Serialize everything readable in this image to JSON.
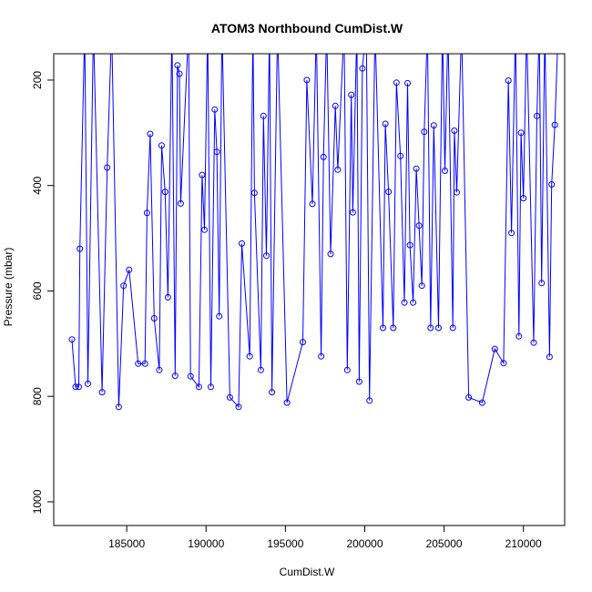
{
  "chart_data": {
    "type": "line",
    "title": "ATOM3 Northbound CumDist.W",
    "xlabel": "CumDist.W",
    "ylabel": "Pressure (mbar)",
    "xlim": [
      180400,
      212600
    ],
    "ylim": [
      1045,
      150
    ],
    "y_reversed": true,
    "x_ticks": [
      185000,
      190000,
      195000,
      200000,
      205000,
      210000
    ],
    "x_tick_labels": [
      "185000",
      "190000",
      "195000",
      "200000",
      "205000",
      "210000"
    ],
    "y_ticks": [
      200,
      400,
      600,
      800,
      1000
    ],
    "y_tick_labels": [
      "200",
      "400",
      "600",
      "800",
      "1000"
    ],
    "line_color": "#0000ff",
    "marker": "open-circle",
    "grid": false,
    "series": [
      {
        "points": [
          [
            181550,
            692
          ],
          [
            181780,
            782
          ],
          [
            181980,
            782
          ],
          [
            182050,
            520
          ],
          [
            182350,
            100
          ],
          [
            182550,
            776
          ],
          [
            182900,
            100
          ],
          [
            183450,
            792
          ],
          [
            183770,
            366
          ],
          [
            184050,
            100
          ],
          [
            184500,
            820
          ],
          [
            184800,
            590
          ],
          [
            185150,
            560
          ],
          [
            185720,
            738
          ],
          [
            186150,
            738
          ],
          [
            186280,
            452
          ],
          [
            186480,
            302
          ],
          [
            186730,
            652
          ],
          [
            187050,
            750
          ],
          [
            187200,
            324
          ],
          [
            187420,
            412
          ],
          [
            187600,
            612
          ],
          [
            187850,
            100
          ],
          [
            188050,
            761
          ],
          [
            188200,
            172
          ],
          [
            188320,
            188
          ],
          [
            188400,
            434
          ],
          [
            188900,
            100
          ],
          [
            189020,
            762
          ],
          [
            189550,
            782
          ],
          [
            189750,
            380
          ],
          [
            189900,
            484
          ],
          [
            190100,
            100
          ],
          [
            190300,
            782
          ],
          [
            190550,
            256
          ],
          [
            190680,
            336
          ],
          [
            190830,
            648
          ],
          [
            191000,
            100
          ],
          [
            191500,
            802
          ],
          [
            192050,
            820
          ],
          [
            192250,
            510
          ],
          [
            192750,
            724
          ],
          [
            192950,
            100
          ],
          [
            193050,
            414
          ],
          [
            193450,
            750
          ],
          [
            193620,
            268
          ],
          [
            193800,
            533
          ],
          [
            194000,
            100
          ],
          [
            194150,
            792
          ],
          [
            194500,
            100
          ],
          [
            195100,
            812
          ],
          [
            196100,
            697
          ],
          [
            196350,
            200
          ],
          [
            196700,
            435
          ],
          [
            196950,
            100
          ],
          [
            197250,
            724
          ],
          [
            197400,
            346
          ],
          [
            197600,
            100
          ],
          [
            197850,
            530
          ],
          [
            198150,
            249
          ],
          [
            198300,
            370
          ],
          [
            198700,
            100
          ],
          [
            198900,
            750
          ],
          [
            199150,
            228
          ],
          [
            199250,
            451
          ],
          [
            199500,
            100
          ],
          [
            199650,
            772
          ],
          [
            199850,
            178
          ],
          [
            200100,
            100
          ],
          [
            200300,
            808
          ],
          [
            200650,
            100
          ],
          [
            201150,
            670
          ],
          [
            201300,
            283
          ],
          [
            201500,
            412
          ],
          [
            201800,
            670
          ],
          [
            202000,
            205
          ],
          [
            202250,
            344
          ],
          [
            202500,
            622
          ],
          [
            202700,
            206
          ],
          [
            202850,
            513
          ],
          [
            203050,
            622
          ],
          [
            203250,
            368
          ],
          [
            203420,
            476
          ],
          [
            203600,
            590
          ],
          [
            203750,
            298
          ],
          [
            203950,
            100
          ],
          [
            204150,
            670
          ],
          [
            204350,
            286
          ],
          [
            204650,
            670
          ],
          [
            204900,
            100
          ],
          [
            205050,
            372
          ],
          [
            205250,
            100
          ],
          [
            205550,
            670
          ],
          [
            205650,
            296
          ],
          [
            205800,
            413
          ],
          [
            206100,
            100
          ],
          [
            206550,
            802
          ],
          [
            207400,
            812
          ],
          [
            208200,
            710
          ],
          [
            208750,
            737
          ],
          [
            209050,
            201
          ],
          [
            209250,
            490
          ],
          [
            209500,
            100
          ],
          [
            209720,
            686
          ],
          [
            209850,
            300
          ],
          [
            210000,
            424
          ],
          [
            210200,
            100
          ],
          [
            210650,
            698
          ],
          [
            210850,
            268
          ],
          [
            211000,
            100
          ],
          [
            211150,
            585
          ],
          [
            211350,
            100
          ],
          [
            211650,
            725
          ],
          [
            211780,
            398
          ],
          [
            211980,
            285
          ],
          [
            212200,
            100
          ]
        ]
      }
    ]
  }
}
